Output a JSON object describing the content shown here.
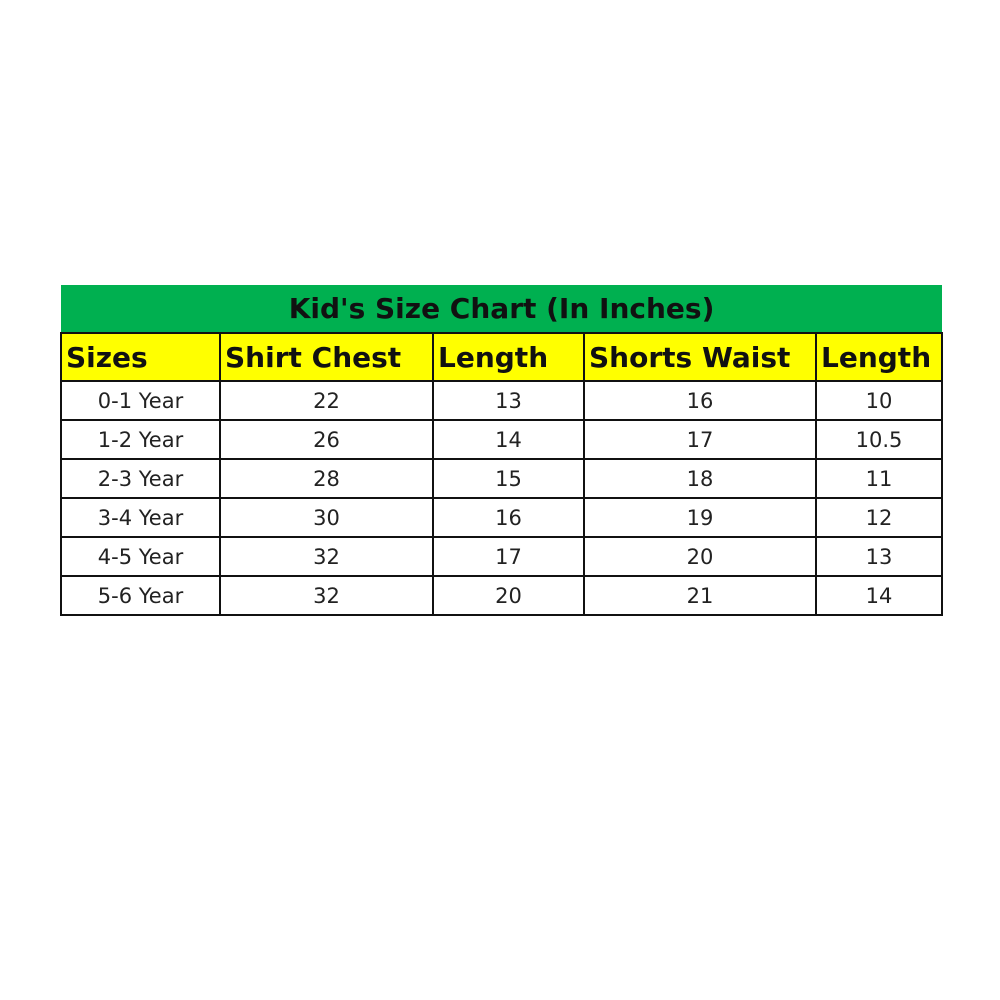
{
  "title": "Kid's Size Chart (In Inches)",
  "colors": {
    "title_bg": "#00b050",
    "header_bg": "#ffff00"
  },
  "headers": [
    "Sizes",
    "Shirt Chest",
    "Length",
    "Shorts Waist",
    "Length"
  ],
  "rows": [
    [
      "0-1 Year",
      "22",
      "13",
      "16",
      "10"
    ],
    [
      "1-2 Year",
      "26",
      "14",
      "17",
      "10.5"
    ],
    [
      "2-3 Year",
      "28",
      "15",
      "18",
      "11"
    ],
    [
      "3-4 Year",
      "30",
      "16",
      "19",
      "12"
    ],
    [
      "4-5 Year",
      "32",
      "17",
      "20",
      "13"
    ],
    [
      "5-6 Year",
      "32",
      "20",
      "21",
      "14"
    ]
  ]
}
